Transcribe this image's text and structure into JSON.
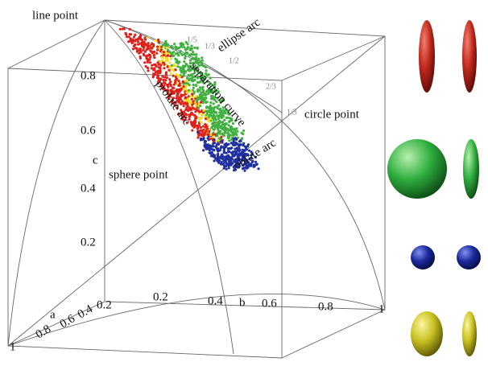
{
  "figure": {
    "labels": {
      "line_point": "line point",
      "ellipse_arc": "ellipse arc",
      "separation_curve": "separation curve",
      "prolate_arc": "prolate arc",
      "circle_point": "circle point",
      "oblate_arc": "oblate arc",
      "sphere_point": "sphere point"
    },
    "axes": {
      "c": "c",
      "b": "b",
      "a": "a"
    },
    "c_ticks": [
      "0.8",
      "0.6",
      "0.4",
      "0.2"
    ],
    "b_ticks": [
      "0.2",
      "0.4",
      "0.6",
      "0.8",
      "1"
    ],
    "a_ticks": [
      "0.2",
      "0.4",
      "0.6",
      "0.8",
      "1"
    ],
    "arc_marks": [
      "1/5",
      "1/3",
      "1/2",
      "2/3",
      "1/3"
    ]
  }
}
